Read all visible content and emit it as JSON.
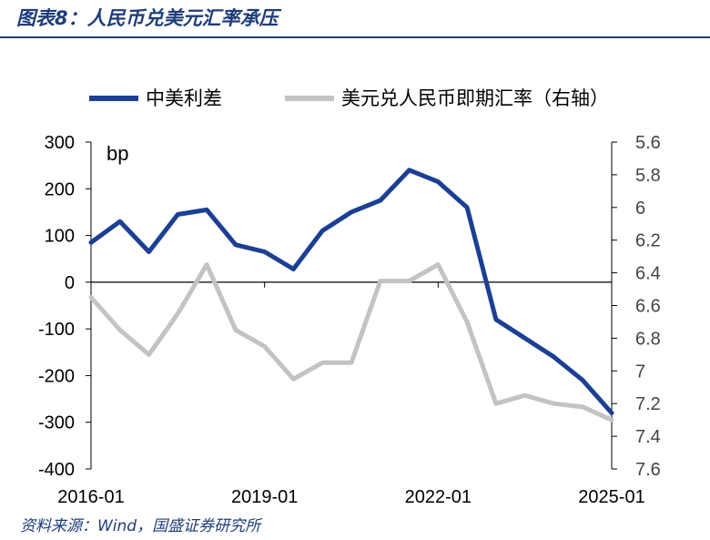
{
  "header": {
    "title": "图表8：人民币兑美元汇率承压"
  },
  "footer": {
    "source": "资料来源：Wind，国盛证券研究所"
  },
  "colors": {
    "title": "#1f3d7a",
    "spread": "#1b3f93",
    "fx": "#c3c3c3",
    "axis": "#000000"
  },
  "chart_data": {
    "type": "line",
    "x": [
      "2016-01",
      "2016-07",
      "2017-01",
      "2017-07",
      "2018-01",
      "2018-07",
      "2019-01",
      "2019-07",
      "2020-01",
      "2020-07",
      "2021-01",
      "2021-07",
      "2022-01",
      "2022-07",
      "2023-01",
      "2023-07",
      "2024-01",
      "2024-07",
      "2025-01"
    ],
    "x_ticks": [
      "2016-01",
      "2019-01",
      "2022-01",
      "2025-01"
    ],
    "y_left": {
      "label": "bp",
      "range": [
        -400,
        300
      ],
      "ticks": [
        "300",
        "200",
        "100",
        "0",
        "-100",
        "-200",
        "-300",
        "-400"
      ]
    },
    "y_right": {
      "range": [
        5.6,
        7.6
      ],
      "inverted": true,
      "ticks": [
        "5.6",
        "5.8",
        "6",
        "6.2",
        "6.4",
        "6.6",
        "6.8",
        "7",
        "7.2",
        "7.4",
        "7.6"
      ]
    },
    "legend_position": "top",
    "series": [
      {
        "name": "中美利差",
        "axis": "left",
        "values": [
          85,
          130,
          65,
          145,
          155,
          80,
          65,
          28,
          110,
          150,
          175,
          240,
          215,
          160,
          -80,
          -120,
          -160,
          -210,
          -280
        ]
      },
      {
        "name": "美元兑人民币即期汇率（右轴）",
        "axis": "right",
        "inverted": true,
        "values": [
          6.55,
          6.75,
          6.9,
          6.65,
          6.35,
          6.75,
          6.85,
          7.05,
          6.95,
          6.95,
          6.45,
          6.45,
          6.35,
          6.7,
          7.2,
          7.15,
          7.2,
          7.22,
          7.3
        ]
      }
    ]
  }
}
